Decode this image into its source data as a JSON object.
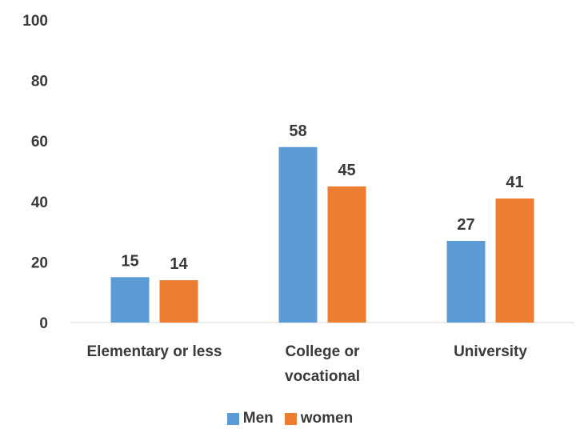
{
  "chart_data": {
    "type": "bar",
    "categories": [
      "Elementary or less",
      "College or vocational",
      "University"
    ],
    "category_lines": [
      [
        "Elementary or less"
      ],
      [
        "College or",
        "vocational"
      ],
      [
        "University"
      ]
    ],
    "series": [
      {
        "name": "Men",
        "values": [
          15,
          58,
          27
        ],
        "color": "#5b9bd5"
      },
      {
        "name": "women",
        "values": [
          14,
          45,
          41
        ],
        "color": "#ed7d31"
      }
    ],
    "yticks": [
      "0",
      "20",
      "40",
      "60",
      "80",
      "100"
    ],
    "ylim": [
      0,
      100
    ],
    "grid": false,
    "legend_position": "bottom-center"
  },
  "legend": {
    "men_label": "Men",
    "women_label": "women",
    "men_color": "#5b9bd5",
    "women_color": "#ed7d31"
  }
}
